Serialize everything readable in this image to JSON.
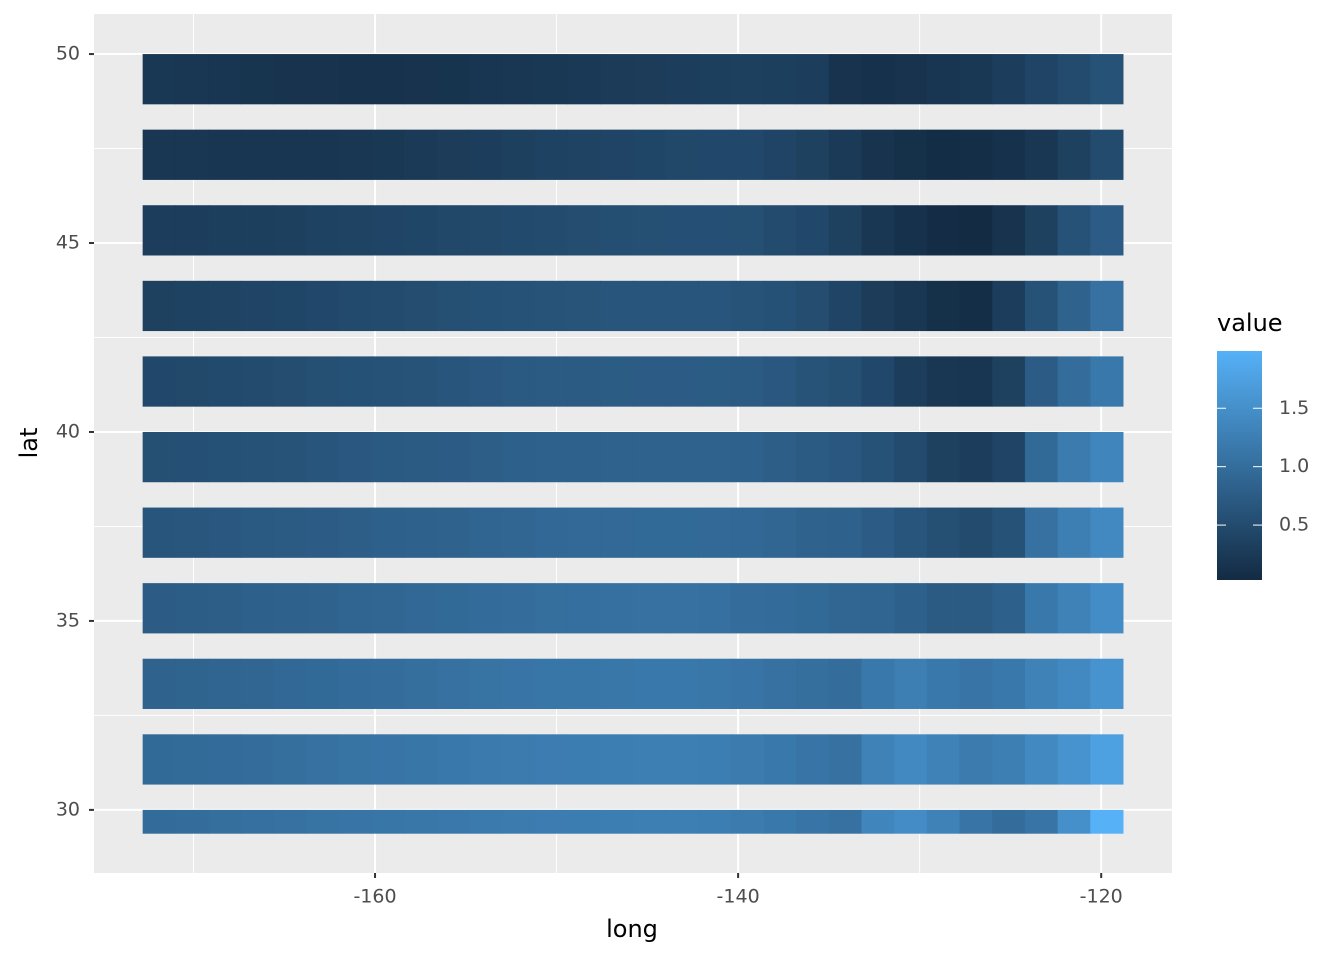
{
  "chart_data": {
    "type": "tile",
    "x_label": "long",
    "y_label": "lat",
    "legend_title": "value",
    "xlim": [
      -175.48,
      -116.1
    ],
    "ylim": [
      28.33,
      51.06
    ],
    "xticks": [
      -160,
      -140,
      -120
    ],
    "yticks": [
      30,
      35,
      40,
      45,
      50
    ],
    "xminor": [
      -170,
      -150,
      -130
    ],
    "yminor": [
      32.5,
      37.5,
      42.5,
      47.5
    ],
    "grid": true,
    "color_low": "#132B43",
    "color_high": "#56B1F7",
    "color_limits": [
      0.03,
      1.99
    ],
    "legend_ticks": [
      0.5,
      {
        "value": 1,
        "label": "1.0"
      },
      1.5
    ],
    "x_bins": [
      -172.8,
      -171,
      -169.2,
      -167.4,
      -165.6,
      -163.8,
      -162,
      -160.2,
      -158.4,
      -156.6,
      -154.8,
      -153,
      -151.2,
      -149.4,
      -147.6,
      -145.8,
      -144,
      -142.2,
      -140.4,
      -138.6,
      -136.8,
      -135,
      -133.2,
      -131.4,
      -129.6,
      -127.8,
      -126,
      -124.2,
      -122.4,
      -120.6,
      -118.8
    ],
    "rows": [
      {
        "ymin": 48.67,
        "ymax": 50,
        "values": [
          0.22,
          0.2,
          0.18,
          0.17,
          0.15,
          0.14,
          0.13,
          0.13,
          0.14,
          0.16,
          0.18,
          0.2,
          0.22,
          0.24,
          0.26,
          0.28,
          0.3,
          0.32,
          0.33,
          0.32,
          0.3,
          0.15,
          0.12,
          0.14,
          0.18,
          0.22,
          0.3,
          0.4,
          0.5,
          0.6
        ]
      },
      {
        "ymin": 46.67,
        "ymax": 48,
        "values": [
          0.2,
          0.2,
          0.19,
          0.18,
          0.18,
          0.18,
          0.2,
          0.22,
          0.25,
          0.28,
          0.3,
          0.33,
          0.36,
          0.38,
          0.4,
          0.42,
          0.44,
          0.45,
          0.45,
          0.4,
          0.35,
          0.25,
          0.15,
          0.1,
          0.06,
          0.08,
          0.12,
          0.2,
          0.35,
          0.5
        ]
      },
      {
        "ymin": 44.67,
        "ymax": 46,
        "values": [
          0.3,
          0.3,
          0.32,
          0.32,
          0.34,
          0.36,
          0.38,
          0.4,
          0.42,
          0.44,
          0.46,
          0.48,
          0.5,
          0.52,
          0.54,
          0.55,
          0.56,
          0.56,
          0.55,
          0.5,
          0.45,
          0.35,
          0.2,
          0.12,
          0.05,
          0.04,
          0.15,
          0.35,
          0.6,
          0.75
        ]
      },
      {
        "ymin": 42.67,
        "ymax": 44,
        "values": [
          0.35,
          0.36,
          0.38,
          0.4,
          0.42,
          0.45,
          0.48,
          0.5,
          0.52,
          0.55,
          0.58,
          0.6,
          0.62,
          0.63,
          0.64,
          0.65,
          0.65,
          0.64,
          0.62,
          0.58,
          0.52,
          0.4,
          0.28,
          0.2,
          0.1,
          0.08,
          0.3,
          0.6,
          0.85,
          1.05
        ]
      },
      {
        "ymin": 40.67,
        "ymax": 42,
        "values": [
          0.45,
          0.46,
          0.48,
          0.5,
          0.52,
          0.55,
          0.58,
          0.6,
          0.62,
          0.65,
          0.68,
          0.7,
          0.72,
          0.73,
          0.74,
          0.75,
          0.75,
          0.74,
          0.72,
          0.68,
          0.62,
          0.55,
          0.45,
          0.3,
          0.2,
          0.18,
          0.35,
          0.75,
          1.0,
          1.15
        ]
      },
      {
        "ymin": 38.67,
        "ymax": 40,
        "values": [
          0.55,
          0.56,
          0.58,
          0.6,
          0.62,
          0.65,
          0.68,
          0.7,
          0.72,
          0.75,
          0.78,
          0.8,
          0.82,
          0.83,
          0.84,
          0.85,
          0.85,
          0.84,
          0.82,
          0.78,
          0.72,
          0.68,
          0.6,
          0.5,
          0.35,
          0.3,
          0.4,
          0.95,
          1.2,
          1.35
        ]
      },
      {
        "ymin": 36.67,
        "ymax": 38,
        "values": [
          0.65,
          0.66,
          0.68,
          0.7,
          0.72,
          0.75,
          0.78,
          0.8,
          0.82,
          0.85,
          0.88,
          0.9,
          0.92,
          0.93,
          0.94,
          0.95,
          0.95,
          0.94,
          0.92,
          0.9,
          0.85,
          0.82,
          0.75,
          0.65,
          0.55,
          0.5,
          0.6,
          1.05,
          1.25,
          1.4
        ]
      },
      {
        "ymin": 34.67,
        "ymax": 36,
        "values": [
          0.75,
          0.76,
          0.78,
          0.8,
          0.82,
          0.85,
          0.88,
          0.9,
          0.92,
          0.95,
          0.98,
          1.0,
          1.02,
          1.03,
          1.04,
          1.05,
          1.05,
          1.04,
          1.0,
          0.98,
          0.95,
          0.9,
          0.88,
          0.8,
          0.72,
          0.72,
          0.8,
          1.15,
          1.3,
          1.45
        ]
      },
      {
        "ymin": 32.67,
        "ymax": 34,
        "values": [
          0.85,
          0.86,
          0.88,
          0.9,
          0.92,
          0.95,
          0.98,
          1.0,
          1.02,
          1.05,
          1.08,
          1.1,
          1.12,
          1.13,
          1.14,
          1.15,
          1.15,
          1.14,
          1.1,
          1.05,
          1.02,
          1.0,
          1.15,
          1.25,
          1.15,
          1.1,
          1.15,
          1.3,
          1.4,
          1.55
        ]
      },
      {
        "ymin": 30.67,
        "ymax": 32,
        "values": [
          0.95,
          0.96,
          0.98,
          1.0,
          1.02,
          1.05,
          1.08,
          1.1,
          1.12,
          1.15,
          1.18,
          1.2,
          1.22,
          1.23,
          1.24,
          1.25,
          1.25,
          1.24,
          1.2,
          1.15,
          1.1,
          1.05,
          1.3,
          1.4,
          1.3,
          1.2,
          1.25,
          1.4,
          1.55,
          1.75
        ]
      },
      {
        "ymin": 29.37,
        "ymax": 30,
        "values": [
          0.98,
          1.0,
          1.02,
          1.04,
          1.06,
          1.08,
          1.1,
          1.12,
          1.14,
          1.16,
          1.18,
          1.2,
          1.22,
          1.23,
          1.24,
          1.25,
          1.25,
          1.24,
          1.2,
          1.15,
          1.1,
          1.05,
          1.35,
          1.45,
          1.3,
          1.1,
          1.0,
          1.1,
          1.5,
          1.99
        ]
      }
    ]
  }
}
